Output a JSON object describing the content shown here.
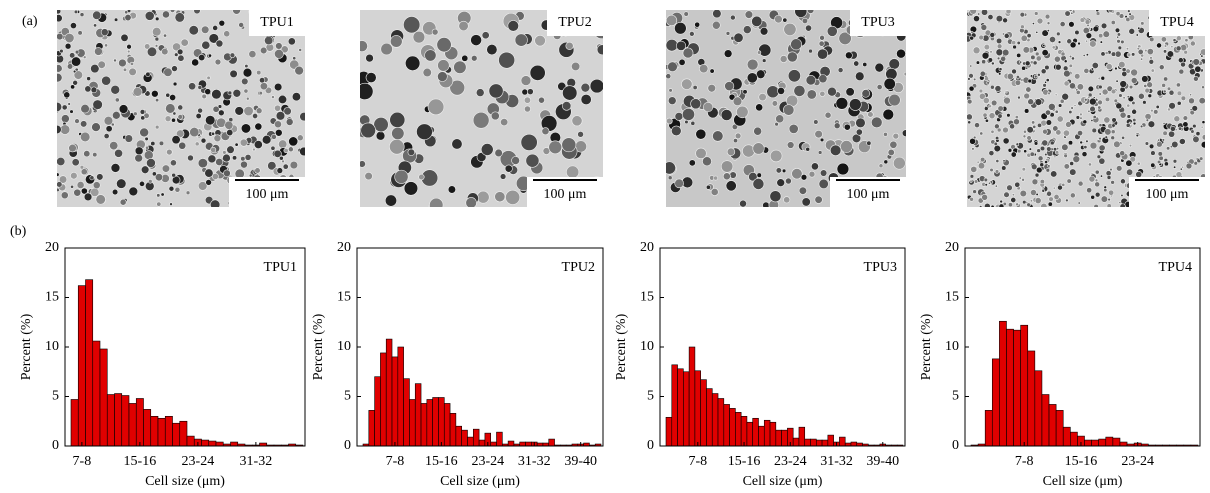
{
  "panel_labels": [
    "(a)",
    "(b)"
  ],
  "micrographs": [
    {
      "label": "TPU1",
      "scale_bar": "100 μm"
    },
    {
      "label": "TPU2",
      "scale_bar": "100 μm"
    },
    {
      "label": "TPU3",
      "scale_bar": "100 μm"
    },
    {
      "label": "TPU4",
      "scale_bar": "100 μm"
    }
  ],
  "chart_data": [
    {
      "type": "bar",
      "annotation": "TPU1",
      "xlabel": "Cell size (μm)",
      "ylabel": "Percent (%)",
      "color": "#e00000",
      "categories": [
        null,
        "7-8",
        null,
        null,
        null,
        null,
        null,
        null,
        null,
        "15-16",
        null,
        null,
        null,
        null,
        null,
        null,
        null,
        "23-24",
        null,
        null,
        null,
        null,
        null,
        null,
        null,
        "31-32",
        null,
        null,
        null,
        null,
        null,
        null
      ],
      "values": [
        4.7,
        16.2,
        16.8,
        10.6,
        9.8,
        5.2,
        5.3,
        5.1,
        4.3,
        4.8,
        3.7,
        3.0,
        2.8,
        3.0,
        2.3,
        2.5,
        1.0,
        0.7,
        0.6,
        0.5,
        0.4,
        0.2,
        0.4,
        0.2,
        0.1,
        0.1,
        0.3,
        0.1,
        0.1,
        0.1,
        0.2,
        0.1
      ],
      "ylim": [
        0,
        20
      ],
      "yticks": [
        0,
        5,
        10,
        15,
        20
      ]
    },
    {
      "type": "bar",
      "annotation": "TPU2",
      "xlabel": "Cell size (μm)",
      "ylabel": "Percent (%)",
      "color": "#e00000",
      "categories": [
        null,
        null,
        null,
        null,
        null,
        "7-8",
        null,
        null,
        null,
        null,
        null,
        null,
        null,
        "15-16",
        null,
        null,
        null,
        null,
        null,
        null,
        null,
        "23-24",
        null,
        null,
        null,
        null,
        null,
        null,
        null,
        "31-32",
        null,
        null,
        null,
        null,
        null,
        null,
        null,
        "39-40",
        null,
        null,
        null
      ],
      "values": [
        0.2,
        3.6,
        7.0,
        9.4,
        10.8,
        9.0,
        10.0,
        6.8,
        4.7,
        6.3,
        4.3,
        4.7,
        4.9,
        4.9,
        4.3,
        3.3,
        2.0,
        1.6,
        0.9,
        1.7,
        0.6,
        1.3,
        0.4,
        1.4,
        0.2,
        0.5,
        0.2,
        0.4,
        0.4,
        0.4,
        0.3,
        0.3,
        0.7,
        0.1,
        0.1,
        0.1,
        0.2,
        0.2,
        0.3,
        0.1,
        0.2
      ],
      "ylim": [
        0,
        20
      ],
      "yticks": [
        0,
        5,
        10,
        15,
        20
      ]
    },
    {
      "type": "bar",
      "annotation": "TPU3",
      "xlabel": "Cell size (μm)",
      "ylabel": "Percent (%)",
      "color": "#e00000",
      "categories": [
        null,
        null,
        null,
        null,
        null,
        "7-8",
        null,
        null,
        null,
        null,
        null,
        null,
        null,
        "15-16",
        null,
        null,
        null,
        null,
        null,
        null,
        null,
        "23-24",
        null,
        null,
        null,
        null,
        null,
        null,
        null,
        "31-32",
        null,
        null,
        null,
        null,
        null,
        null,
        null,
        "39-40",
        null,
        null,
        null
      ],
      "values": [
        2.9,
        8.2,
        7.8,
        7.5,
        10.0,
        7.6,
        6.7,
        5.8,
        5.3,
        4.8,
        4.2,
        3.8,
        3.4,
        3.0,
        2.4,
        2.8,
        2.0,
        2.6,
        2.4,
        1.6,
        1.6,
        1.8,
        0.8,
        1.9,
        0.7,
        0.7,
        0.6,
        0.6,
        1.1,
        0.4,
        0.9,
        0.3,
        0.4,
        0.3,
        0.2,
        0.1,
        0.1,
        0.2,
        0.1,
        0.1,
        0.1
      ],
      "ylim": [
        0,
        20
      ],
      "yticks": [
        0,
        5,
        10,
        15,
        20
      ]
    },
    {
      "type": "bar",
      "annotation": "TPU4",
      "xlabel": "Cell size (μm)",
      "ylabel": "Percent (%)",
      "color": "#e00000",
      "categories": [
        null,
        null,
        null,
        null,
        null,
        null,
        null,
        "7-8",
        null,
        null,
        null,
        null,
        null,
        null,
        null,
        "15-16",
        null,
        null,
        null,
        null,
        null,
        null,
        null,
        "23-24",
        null,
        null,
        null,
        null,
        null,
        null,
        null,
        null
      ],
      "values": [
        0.1,
        0.2,
        3.6,
        8.8,
        12.6,
        11.8,
        11.7,
        12.2,
        9.6,
        7.6,
        5.2,
        4.2,
        3.6,
        1.9,
        1.4,
        1.0,
        0.6,
        0.6,
        0.7,
        0.9,
        0.8,
        0.4,
        0.2,
        0.3,
        0.2,
        0.1,
        0.1,
        0.1,
        0.1,
        0.1,
        0.1,
        0.1
      ],
      "ylim": [
        0,
        20
      ],
      "yticks": [
        0,
        5,
        10,
        15,
        20
      ]
    }
  ]
}
